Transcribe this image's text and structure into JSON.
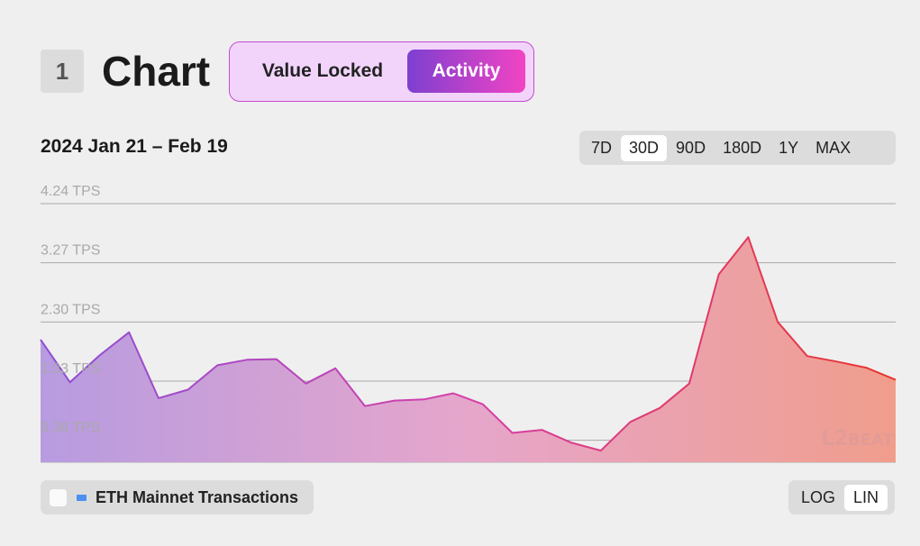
{
  "header": {
    "section_number": "1",
    "title": "Chart",
    "toggle": {
      "options": [
        "Value Locked",
        "Activity"
      ],
      "active": "Activity"
    }
  },
  "date_range": "2024 Jan 21 – Feb 19",
  "range_selector": {
    "options": [
      "7D",
      "30D",
      "90D",
      "180D",
      "1Y",
      "MAX"
    ],
    "active": "30D"
  },
  "legend": {
    "items": [
      {
        "label": "ETH Mainnet Transactions",
        "checked": false,
        "color": "#4a90f0"
      }
    ]
  },
  "scale_selector": {
    "options": [
      "LOG",
      "LIN"
    ],
    "active": "LIN"
  },
  "watermark": {
    "main": "L2",
    "small": "BEAT"
  },
  "chart_data": {
    "type": "area",
    "title": "",
    "xlabel": "",
    "ylabel": "",
    "unit": "TPS",
    "y_ticks": [
      0.36,
      1.33,
      2.3,
      3.27,
      4.24
    ],
    "y_tick_labels": [
      "0.36 TPS",
      "1.33 TPS",
      "2.30 TPS",
      "3.27 TPS",
      "4.24 TPS"
    ],
    "ylim": [
      0.0,
      4.24
    ],
    "x_range": [
      "2024-01-21",
      "2024-02-19"
    ],
    "grid": true,
    "gradient_colors": [
      "#8a4fd6",
      "#d63fa8",
      "#e8362f"
    ],
    "series": [
      {
        "values": [
          2.01,
          1.31,
          1.75,
          2.13,
          1.05,
          1.19,
          1.59,
          1.68,
          1.69,
          1.29,
          1.54,
          0.92,
          1.01,
          1.03,
          1.13,
          0.95,
          0.48,
          0.53,
          0.32,
          0.19,
          0.66,
          0.89,
          1.29,
          3.08,
          3.69,
          2.3,
          1.74,
          1.65,
          1.55,
          1.35
        ]
      }
    ]
  }
}
